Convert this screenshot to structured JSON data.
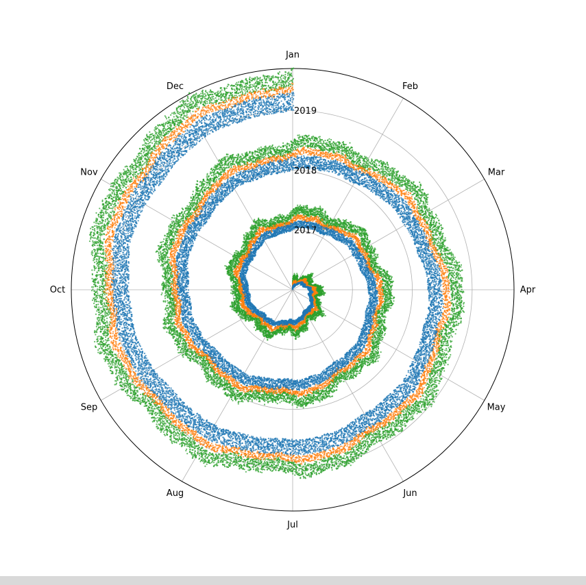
{
  "chart_data": {
    "type": "scatter",
    "projection": "polar-spiral",
    "angular_axis": {
      "direction": "clockwise",
      "zero_at": "top",
      "tick_labels": [
        "Jan",
        "Feb",
        "Mar",
        "Apr",
        "May",
        "Jun",
        "Jul",
        "Aug",
        "Sep",
        "Oct",
        "Nov",
        "Dec"
      ]
    },
    "radial_axis": {
      "range": [
        2016,
        2019.7
      ],
      "tick_values": [
        2017,
        2018,
        2019
      ],
      "tick_labels": [
        "2017",
        "2018",
        "2019"
      ],
      "label_angle": "Jan"
    },
    "time_range": [
      "2016-01-01",
      "2019-01-01"
    ],
    "grid": true,
    "legend": "none",
    "series": [
      {
        "color": "#2ca02c",
        "band_width_years": [
          0.15,
          0.45
        ],
        "wobble": 0.05
      },
      {
        "color": "#ff7f0e",
        "band_width_years": [
          0.08,
          0.24
        ],
        "wobble": 0.04
      },
      {
        "color": "#1f77b4",
        "band_width_years": [
          0.05,
          0.55
        ],
        "wobble": 0.03
      }
    ]
  }
}
